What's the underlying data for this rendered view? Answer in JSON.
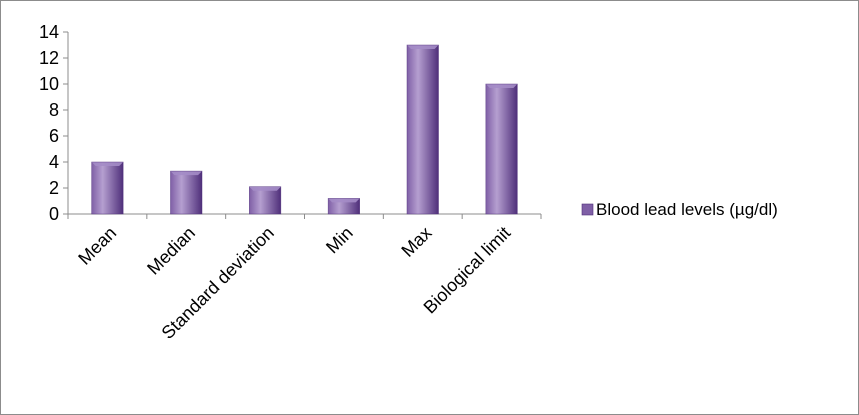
{
  "chart_data": {
    "type": "bar",
    "categories": [
      "Mean",
      "Median",
      "Standard deviation",
      "Min",
      "Max",
      "Biological limit"
    ],
    "series": [
      {
        "name": "Blood lead levels (µg/dl)",
        "values": [
          4.0,
          3.3,
          2.1,
          1.2,
          13.0,
          10.0
        ]
      }
    ],
    "ylim": [
      0,
      14
    ],
    "yticks": [
      0,
      2,
      4,
      6,
      8,
      10,
      12,
      14
    ],
    "title": "",
    "xlabel": "",
    "ylabel": "",
    "grid": false,
    "legend_position": "right",
    "colors": {
      "bar_face": "#7f5fa6",
      "bar_light": "#b59fd0",
      "bar_dark": "#4f2f7a",
      "bar_top": "#a48cc6",
      "axis": "#8c8c8c"
    }
  }
}
